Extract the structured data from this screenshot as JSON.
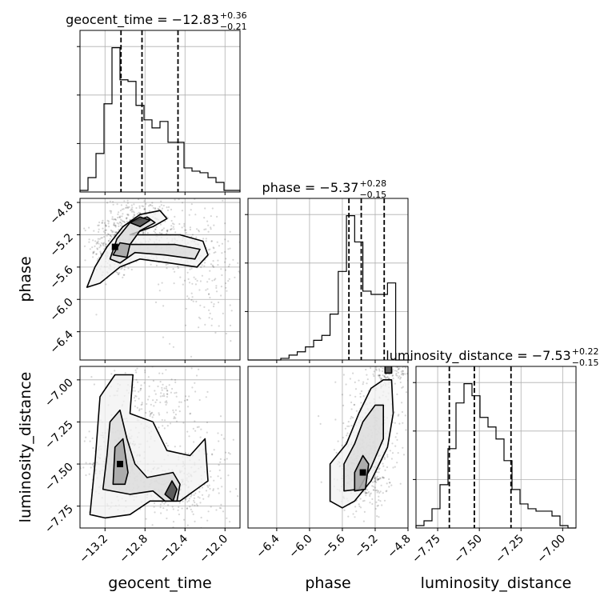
{
  "chart_data": [
    {
      "type": "histogram",
      "panel": "geocent_time-marginal",
      "title": "geocent_time = −12.83",
      "title_sup": "+0.36",
      "title_sub": "−0.21",
      "xlim": [
        -13.45,
        -11.85
      ],
      "bin_edges": [
        -13.45,
        -13.37,
        -13.29,
        -13.21,
        -13.13,
        -13.05,
        -12.97,
        -12.89,
        -12.81,
        -12.73,
        -12.65,
        -12.57,
        -12.49,
        -12.41,
        -12.33,
        -12.25,
        -12.17,
        -12.09,
        -12.01,
        -11.93,
        -11.85
      ],
      "counts": [
        1,
        9,
        24,
        55,
        90,
        70,
        69,
        54,
        45,
        40,
        44,
        31,
        31,
        15,
        13,
        12,
        9,
        6,
        1,
        1
      ],
      "quantiles": [
        -13.04,
        -12.83,
        -12.47
      ],
      "xticks": [
        -13.2,
        -12.8,
        -12.4,
        -12.0
      ],
      "xtick_labels": [
        "−13.2",
        "−12.8",
        "−12.4",
        "−12.0"
      ]
    },
    {
      "type": "histogram",
      "panel": "phase-marginal",
      "title": "phase = −5.37",
      "title_sup": "+0.28",
      "title_sub": "−0.15",
      "xlim": [
        -6.75,
        -4.8
      ],
      "bin_edges": [
        -6.75,
        -6.65,
        -6.55,
        -6.45,
        -6.35,
        -6.25,
        -6.15,
        -6.05,
        -5.95,
        -5.85,
        -5.75,
        -5.65,
        -5.55,
        -5.45,
        -5.35,
        -5.25,
        -5.15,
        -5.05,
        -4.95,
        -4.85,
        -4.75
      ],
      "counts": [
        0,
        0,
        0,
        0,
        1,
        3,
        5,
        8,
        12,
        15,
        28,
        54,
        88,
        72,
        42,
        40,
        40,
        47,
        0,
        0
      ],
      "quantiles": [
        -5.52,
        -5.37,
        -5.09
      ],
      "xticks": [
        -6.4,
        -6.0,
        -5.6,
        -5.2,
        -4.8
      ],
      "xtick_labels": [
        "−6.4",
        "−6.0",
        "−5.6",
        "−5.2",
        "−4.8"
      ]
    },
    {
      "type": "histogram",
      "panel": "luminosity_distance-marginal",
      "title": "luminosity_distance = −7.53",
      "title_sup": "+0.22",
      "title_sub": "−0.15",
      "xlim": [
        -7.88,
        -6.92
      ],
      "bin_edges": [
        -7.88,
        -7.832,
        -7.784,
        -7.736,
        -7.688,
        -7.64,
        -7.592,
        -7.544,
        -7.496,
        -7.448,
        -7.4,
        -7.352,
        -7.304,
        -7.256,
        -7.208,
        -7.16,
        -7.112,
        -7.064,
        -7.016,
        -6.968,
        -6.92
      ],
      "counts": [
        1,
        3,
        8,
        18,
        33,
        52,
        60,
        55,
        46,
        42,
        37,
        28,
        16,
        10,
        8,
        7,
        7,
        5,
        1,
        0
      ],
      "quantiles": [
        -7.68,
        -7.53,
        -7.31
      ],
      "xticks": [
        -7.75,
        -7.5,
        -7.25,
        -7.0
      ],
      "xtick_labels": [
        "−7.75",
        "−7.50",
        "−7.25",
        "−7.00"
      ]
    },
    {
      "type": "density2d",
      "panel": "phase-vs-geocent_time",
      "xlabel": "",
      "ylabel": "phase",
      "xlim": [
        -13.45,
        -11.85
      ],
      "ylim": [
        -6.75,
        -4.75
      ],
      "yticks": [
        -6.4,
        -6.0,
        -5.6,
        -5.2,
        -4.8
      ],
      "ytick_labels": [
        "−6.4",
        "−6.0",
        "−5.6",
        "−5.2",
        "−4.8"
      ],
      "clusters": [
        {
          "cx": -13.1,
          "cy": -5.35,
          "sx": 0.12,
          "sy": 0.2,
          "w": 0.35
        },
        {
          "cx": -12.85,
          "cy": -5.0,
          "sx": 0.18,
          "sy": 0.12,
          "w": 0.25
        },
        {
          "cx": -12.55,
          "cy": -5.35,
          "sx": 0.2,
          "sy": 0.14,
          "w": 0.2
        },
        {
          "cx": -12.2,
          "cy": -5.6,
          "sx": 0.2,
          "sy": 0.45,
          "w": 0.2
        }
      ],
      "contours": [
        [
          [
            -13.38,
            -5.85
          ],
          [
            -13.3,
            -5.6
          ],
          [
            -13.18,
            -5.35
          ],
          [
            -13.02,
            -5.1
          ],
          [
            -12.85,
            -4.95
          ],
          [
            -12.65,
            -4.9
          ],
          [
            -12.58,
            -5.0
          ],
          [
            -12.72,
            -5.1
          ],
          [
            -12.95,
            -5.2
          ],
          [
            -12.45,
            -5.2
          ],
          [
            -12.22,
            -5.28
          ],
          [
            -12.17,
            -5.45
          ],
          [
            -12.28,
            -5.6
          ],
          [
            -12.55,
            -5.55
          ],
          [
            -12.85,
            -5.5
          ],
          [
            -13.05,
            -5.6
          ],
          [
            -13.25,
            -5.8
          ],
          [
            -13.38,
            -5.85
          ]
        ],
        [
          [
            -13.15,
            -5.5
          ],
          [
            -13.08,
            -5.25
          ],
          [
            -12.95,
            -5.05
          ],
          [
            -12.78,
            -4.98
          ],
          [
            -12.7,
            -5.05
          ],
          [
            -12.85,
            -5.15
          ],
          [
            -12.95,
            -5.32
          ],
          [
            -12.5,
            -5.32
          ],
          [
            -12.25,
            -5.38
          ],
          [
            -12.3,
            -5.5
          ],
          [
            -12.6,
            -5.45
          ],
          [
            -12.9,
            -5.42
          ],
          [
            -13.05,
            -5.55
          ],
          [
            -13.15,
            -5.5
          ]
        ],
        [
          [
            -13.12,
            -5.45
          ],
          [
            -13.05,
            -5.3
          ],
          [
            -12.95,
            -5.32
          ],
          [
            -12.98,
            -5.48
          ],
          [
            -13.12,
            -5.45
          ]
        ],
        [
          [
            -12.95,
            -5.05
          ],
          [
            -12.85,
            -4.98
          ],
          [
            -12.75,
            -5.02
          ],
          [
            -12.85,
            -5.1
          ],
          [
            -12.95,
            -5.05
          ]
        ]
      ]
    },
    {
      "type": "density2d",
      "panel": "luminosity_distance-vs-geocent_time",
      "xlabel": "geocent_time",
      "ylabel": "luminosity_distance",
      "xlim": [
        -13.45,
        -11.85
      ],
      "ylim": [
        -7.88,
        -6.92
      ],
      "xticks": [
        -13.2,
        -12.8,
        -12.4,
        -12.0
      ],
      "xtick_labels": [
        "−13.2",
        "−12.8",
        "−12.4",
        "−12.0"
      ],
      "yticks": [
        -7.75,
        -7.5,
        -7.25,
        -7.0
      ],
      "ytick_labels": [
        "−7.75",
        "−7.50",
        "−7.25",
        "−7.00"
      ],
      "clusters": [
        {
          "cx": -13.05,
          "cy": -7.5,
          "sx": 0.15,
          "sy": 0.12,
          "w": 0.4
        },
        {
          "cx": -12.75,
          "cy": -7.1,
          "sx": 0.25,
          "sy": 0.12,
          "w": 0.2
        },
        {
          "cx": -12.55,
          "cy": -7.65,
          "sx": 0.15,
          "sy": 0.08,
          "w": 0.2
        },
        {
          "cx": -12.3,
          "cy": -7.55,
          "sx": 0.2,
          "sy": 0.2,
          "w": 0.2
        }
      ],
      "contours": [
        [
          [
            -13.35,
            -7.8
          ],
          [
            -13.3,
            -7.5
          ],
          [
            -13.25,
            -7.1
          ],
          [
            -13.1,
            -6.97
          ],
          [
            -12.92,
            -6.97
          ],
          [
            -12.95,
            -7.2
          ],
          [
            -12.72,
            -7.25
          ],
          [
            -12.58,
            -7.42
          ],
          [
            -12.35,
            -7.45
          ],
          [
            -12.2,
            -7.35
          ],
          [
            -12.17,
            -7.6
          ],
          [
            -12.45,
            -7.72
          ],
          [
            -12.75,
            -7.72
          ],
          [
            -12.95,
            -7.8
          ],
          [
            -13.2,
            -7.82
          ],
          [
            -13.35,
            -7.8
          ]
        ],
        [
          [
            -13.22,
            -7.65
          ],
          [
            -13.18,
            -7.45
          ],
          [
            -13.15,
            -7.25
          ],
          [
            -13.05,
            -7.18
          ],
          [
            -12.98,
            -7.35
          ],
          [
            -12.9,
            -7.5
          ],
          [
            -12.78,
            -7.58
          ],
          [
            -12.52,
            -7.55
          ],
          [
            -12.45,
            -7.62
          ],
          [
            -12.48,
            -7.72
          ],
          [
            -12.6,
            -7.72
          ],
          [
            -12.72,
            -7.66
          ],
          [
            -12.95,
            -7.68
          ],
          [
            -13.22,
            -7.65
          ]
        ],
        [
          [
            -13.12,
            -7.62
          ],
          [
            -13.1,
            -7.4
          ],
          [
            -13.02,
            -7.35
          ],
          [
            -12.97,
            -7.55
          ],
          [
            -13.0,
            -7.62
          ],
          [
            -13.12,
            -7.62
          ]
        ],
        [
          [
            -12.6,
            -7.68
          ],
          [
            -12.53,
            -7.6
          ],
          [
            -12.48,
            -7.65
          ],
          [
            -12.52,
            -7.72
          ],
          [
            -12.6,
            -7.68
          ]
        ]
      ]
    },
    {
      "type": "density2d",
      "panel": "luminosity_distance-vs-phase",
      "xlabel": "phase",
      "ylabel": "",
      "xlim": [
        -6.75,
        -4.8
      ],
      "ylim": [
        -7.88,
        -6.92
      ],
      "xticks": [
        -6.4,
        -6.0,
        -5.6,
        -5.2,
        -4.8
      ],
      "xtick_labels": [
        "−6.4",
        "−6.0",
        "−5.6",
        "−5.2",
        "−4.8"
      ],
      "clusters": [
        {
          "cx": -5.35,
          "cy": -7.55,
          "sx": 0.15,
          "sy": 0.1,
          "w": 0.45
        },
        {
          "cx": -5.25,
          "cy": -7.3,
          "sx": 0.2,
          "sy": 0.18,
          "w": 0.35
        },
        {
          "cx": -4.95,
          "cy": -6.95,
          "sx": 0.25,
          "sy": 0.05,
          "w": 0.2
        }
      ],
      "contours": [
        [
          [
            -5.75,
            -7.72
          ],
          [
            -5.75,
            -7.5
          ],
          [
            -5.55,
            -7.38
          ],
          [
            -5.4,
            -7.2
          ],
          [
            -5.25,
            -7.05
          ],
          [
            -5.1,
            -7.0
          ],
          [
            -5.0,
            -7.0
          ],
          [
            -4.98,
            -7.2
          ],
          [
            -5.05,
            -7.4
          ],
          [
            -5.25,
            -7.6
          ],
          [
            -5.45,
            -7.72
          ],
          [
            -5.6,
            -7.76
          ],
          [
            -5.75,
            -7.72
          ]
        ],
        [
          [
            -5.58,
            -7.66
          ],
          [
            -5.58,
            -7.5
          ],
          [
            -5.45,
            -7.38
          ],
          [
            -5.35,
            -7.25
          ],
          [
            -5.2,
            -7.15
          ],
          [
            -5.1,
            -7.15
          ],
          [
            -5.1,
            -7.35
          ],
          [
            -5.25,
            -7.52
          ],
          [
            -5.4,
            -7.65
          ],
          [
            -5.58,
            -7.66
          ]
        ],
        [
          [
            -5.45,
            -7.66
          ],
          [
            -5.45,
            -7.55
          ],
          [
            -5.35,
            -7.45
          ],
          [
            -5.28,
            -7.5
          ],
          [
            -5.32,
            -7.65
          ],
          [
            -5.45,
            -7.66
          ]
        ],
        [
          [
            -5.08,
            -6.96
          ],
          [
            -5.08,
            -6.9
          ],
          [
            -5.0,
            -6.9
          ],
          [
            -5.0,
            -6.96
          ],
          [
            -5.08,
            -6.96
          ]
        ]
      ]
    }
  ]
}
